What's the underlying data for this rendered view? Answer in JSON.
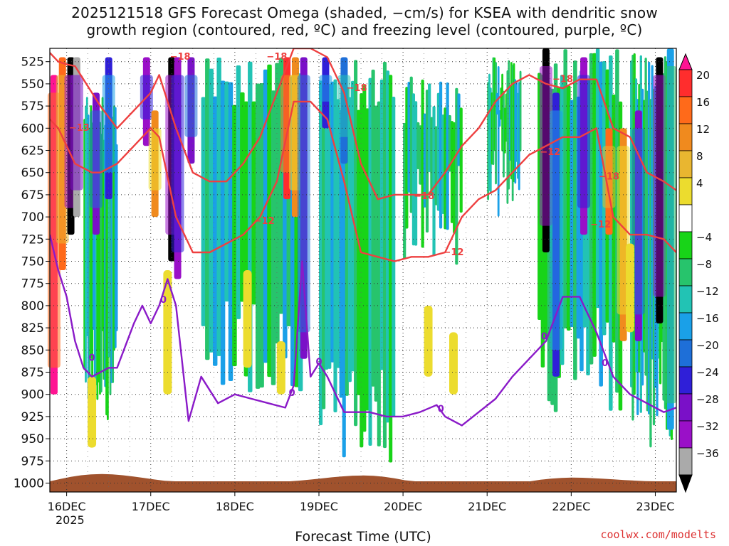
{
  "title_line1": "2025121518 GFS Forecast Omega (shaded, −cm/s) for KSEA with dendritic snow",
  "title_line2": "growth region (contoured, red, ºC) and freezing level (contoured, purple, ºC)",
  "credit": "coolwx.com/modelts",
  "chart_data": {
    "type": "heatmap",
    "title": "2025121518 GFS Forecast Omega (shaded, −cm/s) for KSEA with dendritic snow growth region (contoured, red, ºC) and freezing level (contoured, purple, ºC)",
    "xlabel": "Forecast Time (UTC)",
    "x_ticks": [
      "16DEC",
      "17DEC",
      "18DEC",
      "19DEC",
      "20DEC",
      "21DEC",
      "22DEC",
      "23DEC"
    ],
    "x_year_label": "2025",
    "y_ticks": [
      525,
      550,
      575,
      600,
      625,
      650,
      675,
      700,
      725,
      750,
      775,
      800,
      825,
      850,
      875,
      900,
      925,
      950,
      975,
      1000
    ],
    "y_range": [
      510,
      1010
    ],
    "x_range_days": [
      15.8,
      23.25
    ],
    "grid": true,
    "colorbar": {
      "labels": [
        "20",
        "16",
        "12",
        "8",
        "4",
        "−4",
        "−8",
        "−12",
        "−16",
        "−20",
        "−24",
        "−28",
        "−32",
        "−36"
      ],
      "colors": [
        "#ff1493",
        "#ff2d2d",
        "#ff6a1a",
        "#f08a1e",
        "#e9b630",
        "#ecdc2e",
        "#ffffff",
        "#18d418",
        "#27c46c",
        "#22c3b4",
        "#1aa0e8",
        "#1e6fd8",
        "#2f1fd8",
        "#7a10c8",
        "#9a10c8",
        "#aaaaaa",
        "#000000"
      ]
    },
    "contour_labels_red": [
      "−18",
      "−13",
      "−18",
      "−18",
      "−12",
      "−18",
      "−12",
      "−18",
      "−12",
      "−18",
      "−12"
    ],
    "contour_labels_purple": [
      "0",
      "0",
      "0",
      "0",
      "0",
      "0",
      "0"
    ],
    "freezing_level_hpa": {
      "x": [
        15.8,
        15.9,
        16.0,
        16.1,
        16.2,
        16.3,
        16.5,
        16.6,
        16.8,
        16.9,
        17.0,
        17.1,
        17.2,
        17.3,
        17.45,
        17.6,
        17.8,
        18.0,
        18.2,
        18.4,
        18.6,
        18.7,
        18.8,
        18.9,
        19.0,
        19.1,
        19.3,
        19.4,
        19.6,
        19.8,
        20.0,
        20.2,
        20.4,
        20.5,
        20.7,
        20.9,
        21.1,
        21.3,
        21.5,
        21.7,
        21.9,
        22.1,
        22.3,
        22.5,
        22.7,
        22.9,
        23.1,
        23.25
      ],
      "values": [
        720,
        760,
        790,
        840,
        870,
        880,
        870,
        870,
        820,
        800,
        820,
        800,
        770,
        800,
        930,
        880,
        910,
        900,
        905,
        910,
        915,
        890,
        750,
        880,
        865,
        880,
        920,
        920,
        920,
        925,
        925,
        920,
        912,
        925,
        935,
        920,
        905,
        880,
        860,
        840,
        790,
        790,
        830,
        880,
        900,
        910,
        920,
        915
      ]
    },
    "dgz_minus12_hpa": {
      "x": [
        15.8,
        15.9,
        16.0,
        16.1,
        16.3,
        16.4,
        16.6,
        16.8,
        17.0,
        17.1,
        17.3,
        17.5,
        17.7,
        17.9,
        18.1,
        18.3,
        18.5,
        18.7,
        18.9,
        19.1,
        19.3,
        19.5,
        19.7,
        19.9,
        20.1,
        20.3,
        20.5,
        20.7,
        20.9,
        21.1,
        21.3,
        21.5,
        21.7,
        21.9,
        22.1,
        22.3,
        22.5,
        22.7,
        22.9,
        23.1,
        23.25
      ],
      "values": [
        590,
        600,
        620,
        640,
        650,
        650,
        640,
        620,
        600,
        610,
        700,
        740,
        740,
        730,
        720,
        700,
        660,
        570,
        570,
        590,
        660,
        740,
        745,
        750,
        745,
        745,
        740,
        700,
        680,
        670,
        650,
        630,
        620,
        610,
        610,
        600,
        700,
        720,
        720,
        725,
        740
      ]
    },
    "dgz_minus18_hpa": {
      "x": [
        15.8,
        15.9,
        16.0,
        16.1,
        16.3,
        16.4,
        16.6,
        16.8,
        17.0,
        17.1,
        17.3,
        17.5,
        17.7,
        17.9,
        18.1,
        18.3,
        18.5,
        18.7,
        18.9,
        19.1,
        19.3,
        19.5,
        19.7,
        19.9,
        20.1,
        20.3,
        20.5,
        20.7,
        20.9,
        21.1,
        21.3,
        21.5,
        21.7,
        21.9,
        22.1,
        22.3,
        22.5,
        22.7,
        22.9,
        23.1,
        23.25
      ],
      "values": [
        515,
        525,
        528,
        530,
        560,
        575,
        600,
        580,
        560,
        540,
        600,
        650,
        660,
        660,
        640,
        610,
        560,
        510,
        510,
        520,
        560,
        640,
        680,
        675,
        675,
        675,
        650,
        620,
        600,
        570,
        550,
        540,
        550,
        555,
        545,
        545,
        600,
        610,
        650,
        660,
        670
      ]
    },
    "terrain_hpa_top": 1000
  }
}
